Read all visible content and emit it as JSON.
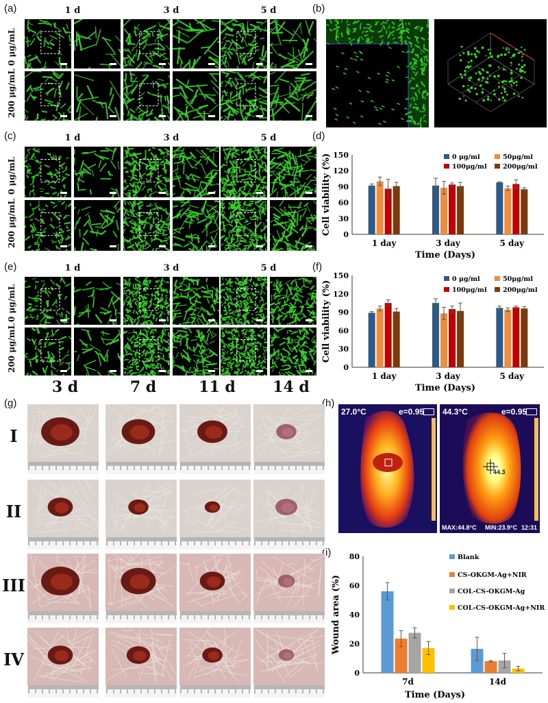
{
  "panel_labels": [
    "(a)",
    "(b)",
    "(c)",
    "(d)",
    "(e)",
    "(f)",
    "(g)",
    "(h)",
    "(i)"
  ],
  "micrograph_grids": {
    "time_labels": [
      "1 d",
      "3 d",
      "5 d"
    ],
    "concentration_labels": [
      "0 μg/mL",
      "200 μg/mL"
    ]
  },
  "healing_photos": {
    "time_labels": [
      "3 d",
      "7 d",
      "11 d",
      "14 d"
    ],
    "group_labels": [
      "I",
      "II",
      "III",
      "IV"
    ]
  },
  "thermal": {
    "left": {
      "temp": "27.0°C",
      "emissivity": "e=0.95"
    },
    "right": {
      "temp": "44.3°C",
      "emissivity": "e=0.95",
      "max": "MAX:44.8°C",
      "min": "MIN:23.9°C",
      "time": "12:31",
      "spot": "44.3"
    }
  },
  "colors": {
    "blue": "#2e5a88",
    "orange": "#f08c3e",
    "red": "#c00000",
    "brown": "#7a3a0a",
    "blue_i": "#5b9bd5",
    "orange_i": "#ed7d31",
    "gray_i": "#a5a5a5",
    "yellow_i": "#ffc000",
    "fluor_green": "#39d12a"
  },
  "chart_data": [
    {
      "id": "d",
      "type": "bar",
      "ylabel": "Cell viability (%)",
      "xlabel": "Time (Days)",
      "categories": [
        "1 day",
        "3 day",
        "5 day"
      ],
      "ylim": [
        0,
        150
      ],
      "yticks": [
        0,
        30,
        60,
        90,
        120,
        150
      ],
      "legend": "top-right",
      "series": [
        {
          "name": "0 μg/ml",
          "color": "#2e5a88",
          "values": [
            92,
            92,
            98
          ],
          "errors": [
            3,
            14,
            1
          ]
        },
        {
          "name": "50μg/ml",
          "color": "#f08c3e",
          "values": [
            100,
            88,
            87
          ],
          "errors": [
            8,
            12,
            4
          ]
        },
        {
          "name": "100μg/ml",
          "color": "#c00000",
          "values": [
            86,
            94,
            95
          ],
          "errors": [
            18,
            3,
            8
          ]
        },
        {
          "name": "200μg/ml",
          "color": "#7a3a0a",
          "values": [
            91,
            91,
            85
          ],
          "errors": [
            7,
            7,
            3
          ]
        }
      ]
    },
    {
      "id": "f",
      "type": "bar",
      "ylabel": "Cell viability (%)",
      "xlabel": "Time (Days)",
      "categories": [
        "1 day",
        "3 day",
        "5 day"
      ],
      "ylim": [
        0,
        150
      ],
      "yticks": [
        0,
        30,
        60,
        90,
        120,
        150
      ],
      "legend": "top-right",
      "series": [
        {
          "name": "0 μg/ml",
          "color": "#2e5a88",
          "values": [
            89,
            105,
            97
          ],
          "errors": [
            2,
            7,
            3
          ]
        },
        {
          "name": "50μg/ml",
          "color": "#f08c3e",
          "values": [
            96,
            88,
            94
          ],
          "errors": [
            4,
            10,
            3
          ]
        },
        {
          "name": "100μg/ml",
          "color": "#c00000",
          "values": [
            105,
            95,
            98
          ],
          "errors": [
            5,
            5,
            2
          ]
        },
        {
          "name": "200μg/ml",
          "color": "#7a3a0a",
          "values": [
            91,
            92,
            96
          ],
          "errors": [
            5,
            13,
            3
          ]
        }
      ]
    },
    {
      "id": "i",
      "type": "bar",
      "ylabel": "Wound area (%)",
      "xlabel": "Time (Days)",
      "categories": [
        "7d",
        "14d"
      ],
      "ylim": [
        0,
        80
      ],
      "yticks": [
        0,
        20,
        40,
        60,
        80
      ],
      "legend": "top-right",
      "series": [
        {
          "name": "Blank",
          "color": "#5b9bd5",
          "values": [
            56,
            16.5
          ],
          "errors": [
            6,
            8
          ]
        },
        {
          "name": "CS-OKGM-Ag+NIR",
          "color": "#ed7d31",
          "values": [
            23.5,
            8
          ],
          "errors": [
            5.5,
            0.5
          ]
        },
        {
          "name": "COL-CS-OKGM-Ag",
          "color": "#a5a5a5",
          "values": [
            27.5,
            8.5
          ],
          "errors": [
            3.5,
            5
          ]
        },
        {
          "name": "COL-CS-OKGM-Ag+NIR",
          "color": "#ffc000",
          "values": [
            17,
            3
          ],
          "errors": [
            4.5,
            1.5
          ]
        }
      ]
    }
  ]
}
